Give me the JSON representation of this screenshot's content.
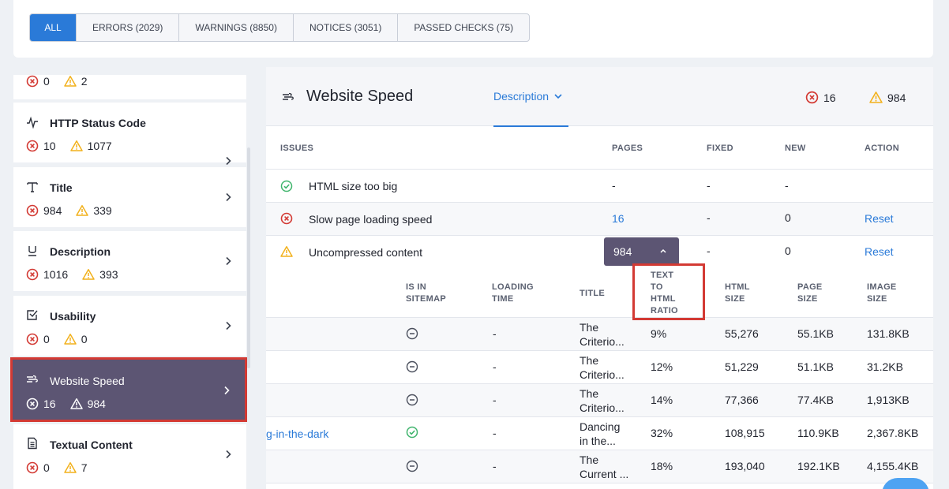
{
  "tabs": [
    {
      "label": "ALL",
      "active": true
    },
    {
      "label": "ERRORS (2029)"
    },
    {
      "label": "WARNINGS (8850)"
    },
    {
      "label": "NOTICES (3051)"
    },
    {
      "label": "PASSED CHECKS (75)"
    }
  ],
  "sidebar": {
    "top_partial": {
      "errors": "0",
      "warnings": "2"
    },
    "items": [
      {
        "title": "HTTP Status Code",
        "errors": "10",
        "warnings": "1077",
        "icon": "pulse-icon"
      },
      {
        "title": "Title",
        "errors": "984",
        "warnings": "339",
        "icon": "title-t-icon"
      },
      {
        "title": "Description",
        "errors": "1016",
        "warnings": "393",
        "icon": "underline-u-icon"
      },
      {
        "title": "Usability",
        "errors": "0",
        "warnings": "0",
        "icon": "checkbox-icon"
      },
      {
        "title": "Website Speed",
        "errors": "16",
        "warnings": "984",
        "icon": "speed-icon",
        "selected": true
      },
      {
        "title": "Textual Content",
        "errors": "0",
        "warnings": "7",
        "icon": "document-icon"
      }
    ]
  },
  "main": {
    "title": "Website Speed",
    "dropdown_label": "Description",
    "errors": "16",
    "warnings": "984",
    "columns": {
      "issues": "ISSUES",
      "pages": "PAGES",
      "fixed": "FIXED",
      "new": "NEW",
      "action": "ACTION"
    },
    "issues": [
      {
        "name": "HTML size too big",
        "status": "passed",
        "pages": "-",
        "fixed": "-",
        "new": "-",
        "action": ""
      },
      {
        "name": "Slow page loading speed",
        "status": "error",
        "pages": "16",
        "fixed": "-",
        "new": "0",
        "action": "Reset"
      },
      {
        "name": "Uncompressed content",
        "status": "warning",
        "pages": "984",
        "fixed": "-",
        "new": "0",
        "action": "Reset"
      }
    ],
    "sub_columns": {
      "sitemap": [
        "IS IN",
        "SITEMAP"
      ],
      "loading": [
        "LOADING",
        "TIME"
      ],
      "title": [
        "TITLE"
      ],
      "ratio": [
        "TEXT",
        "TO",
        "HTML",
        "RATIO"
      ],
      "html_size": [
        "HTML",
        "SIZE"
      ],
      "page_size": [
        "PAGE",
        "SIZE"
      ],
      "image_size": [
        "IMAGE",
        "SIZE"
      ]
    },
    "sub_rows": [
      {
        "url": "",
        "sitemap": "no",
        "loading": "-",
        "title1": "The",
        "title2": "Criterio...",
        "ratio": "9%",
        "html_size": "55,276",
        "page_size": "55.1KB",
        "image_size": "131.8KB"
      },
      {
        "url": "",
        "sitemap": "no",
        "loading": "-",
        "title1": "The",
        "title2": "Criterio...",
        "ratio": "12%",
        "html_size": "51,229",
        "page_size": "51.1KB",
        "image_size": "31.2KB"
      },
      {
        "url": "",
        "sitemap": "no",
        "loading": "-",
        "title1": "The",
        "title2": "Criterio...",
        "ratio": "14%",
        "html_size": "77,366",
        "page_size": "77.4KB",
        "image_size": "1,913KB"
      },
      {
        "url": "g-in-the-dark",
        "sitemap": "yes",
        "loading": "-",
        "title1": "Dancing",
        "title2": "in the...",
        "ratio": "32%",
        "html_size": "108,915",
        "page_size": "110.9KB",
        "image_size": "2,367.8KB"
      },
      {
        "url": "",
        "sitemap": "no",
        "loading": "-",
        "title1": "The",
        "title2": "Current ...",
        "ratio": "18%",
        "html_size": "193,040",
        "page_size": "192.1KB",
        "image_size": "4,155.4KB"
      }
    ]
  }
}
